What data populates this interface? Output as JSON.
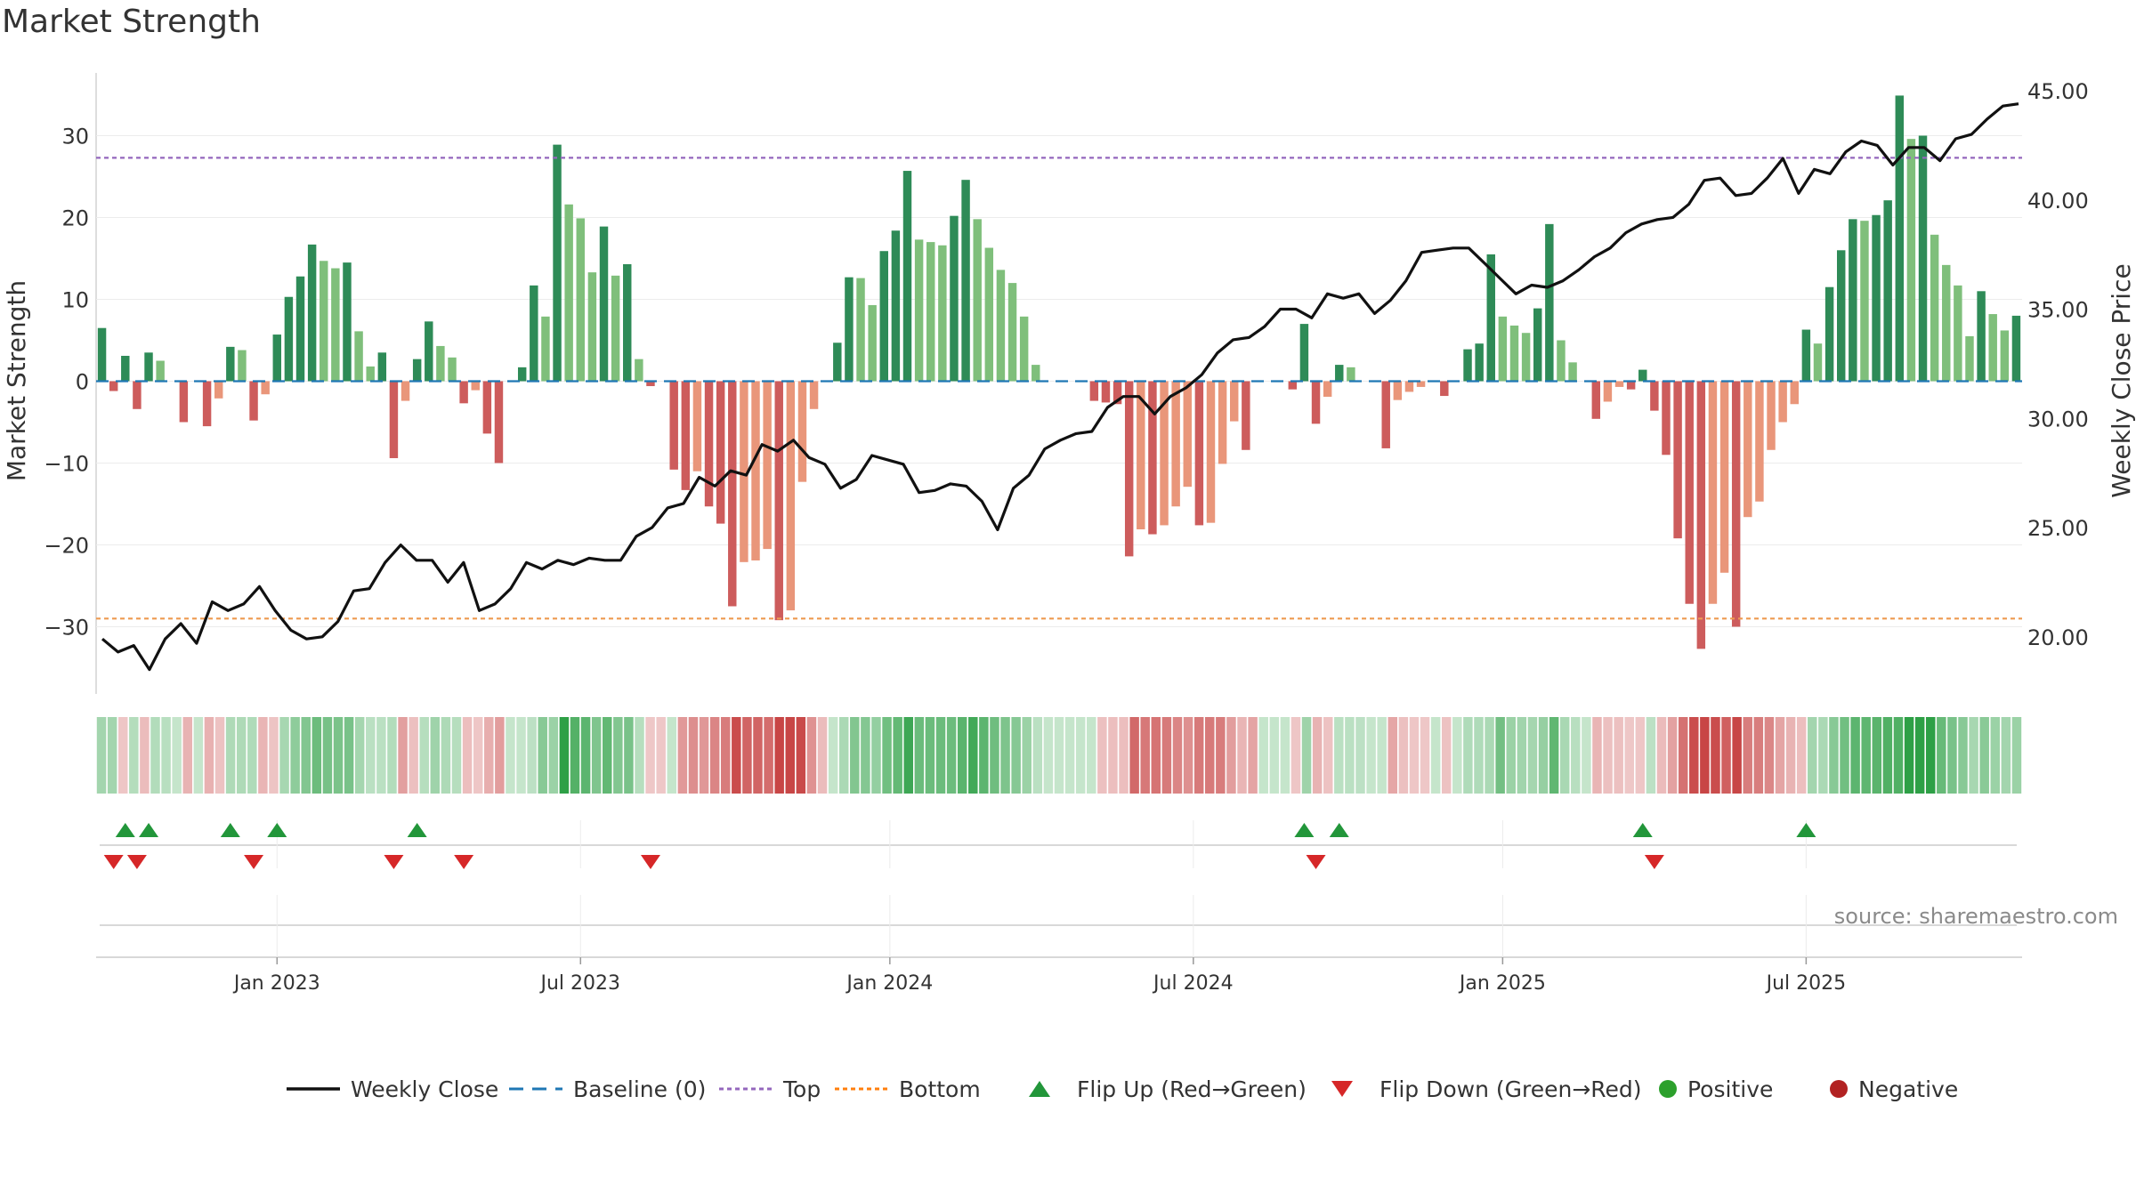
{
  "chart_data": {
    "type": "bar",
    "title": "Market Strength",
    "source": "source: sharemaestro.com",
    "ylabel_left": "Market Strength",
    "ylabel_right": "Weekly Close Price",
    "y_left_ticks": [
      "30",
      "20",
      "10",
      "0",
      "−10",
      "−20",
      "−30"
    ],
    "y_left_range": [
      -38,
      38
    ],
    "y_right_ticks": [
      "45.00",
      "40.00",
      "35.00",
      "30.00",
      "25.00",
      "20.00"
    ],
    "y_right_range": [
      17.5,
      46.5
    ],
    "x_tick_labels": [
      "Jan 2023",
      "Jul 2023",
      "Jan 2024",
      "Jul 2024",
      "Jan 2025",
      "Jul 2025"
    ],
    "x_tick_weeks": [
      15,
      41,
      67.5,
      93.5,
      120,
      146
    ],
    "top_line": 27.3,
    "bottom_line": -29.0,
    "baseline": 0,
    "strength": [
      6.5,
      -1.2,
      3.1,
      -3.4,
      3.5,
      2.5,
      0,
      -5,
      0,
      -5.5,
      -2.1,
      4.2,
      3.8,
      -4.8,
      -1.6,
      5.7,
      10.3,
      12.8,
      16.7,
      14.7,
      13.8,
      14.5,
      6.1,
      1.8,
      3.5,
      -9.4,
      -2.4,
      2.7,
      7.3,
      4.3,
      2.9,
      -2.7,
      -1.1,
      -6.4,
      -10,
      0,
      1.7,
      11.7,
      7.9,
      28.9,
      21.6,
      19.9,
      13.3,
      18.9,
      12.9,
      14.3,
      2.7,
      -0.6,
      0,
      -10.8,
      -13.3,
      -11,
      -15.3,
      -17.4,
      -27.5,
      -22.1,
      -21.9,
      -20.5,
      -29.2,
      -28,
      -12.3,
      -3.4,
      0,
      4.7,
      12.7,
      12.6,
      9.3,
      15.9,
      18.4,
      25.7,
      17.3,
      17,
      16.6,
      20.2,
      24.6,
      19.8,
      16.3,
      13.6,
      12,
      7.9,
      2,
      0,
      0,
      0,
      0,
      -2.4,
      -2.6,
      -2.8,
      -21.4,
      -18.1,
      -18.7,
      -17.6,
      -15.3,
      -12.9,
      -17.6,
      -17.3,
      -10.1,
      -4.9,
      -8.4,
      0,
      0,
      0,
      -1,
      7,
      -5.2,
      -1.9,
      2,
      1.7,
      0,
      0,
      -8.2,
      -2.3,
      -1.3,
      -0.7,
      0,
      -1.8,
      0,
      3.9,
      4.6,
      15.5,
      7.9,
      6.8,
      5.9,
      8.9,
      19.2,
      5,
      2.3,
      0,
      -4.6,
      -2.5,
      -0.7,
      -1,
      1.4,
      -3.6,
      -9,
      -19.2,
      -27.2,
      -32.7,
      -27.2,
      -23.4,
      -30,
      -16.6,
      -14.7,
      -8.4,
      -5,
      -2.8,
      6.3,
      4.6,
      11.5,
      16,
      19.8,
      19.6,
      20.3,
      22.1,
      34.9,
      29.6,
      30,
      17.9,
      14.2,
      11.7,
      5.5,
      11,
      8.2,
      6.2,
      8
    ],
    "weekly_close": [
      19.9,
      19.3,
      19.6,
      18.5,
      19.9,
      20.6,
      19.7,
      21.6,
      21.2,
      21.5,
      22.3,
      21.2,
      20.3,
      19.9,
      20.0,
      20.7,
      22.1,
      22.2,
      23.4,
      24.2,
      23.5,
      23.5,
      22.5,
      23.4,
      21.2,
      21.5,
      22.2,
      23.4,
      23.1,
      23.5,
      23.3,
      23.6,
      23.5,
      23.5,
      24.6,
      25.0,
      25.9,
      26.1,
      27.3,
      26.9,
      27.6,
      27.4,
      28.8,
      28.5,
      29.0,
      28.2,
      27.9,
      26.8,
      27.2,
      28.3,
      28.1,
      27.9,
      26.6,
      26.7,
      27.0,
      26.9,
      26.2,
      24.9,
      26.8,
      27.4,
      28.6,
      29.0,
      29.3,
      29.4,
      30.5,
      31.0,
      31.0,
      30.2,
      31.0,
      31.4,
      32.0,
      33.0,
      33.6,
      33.7,
      34.2,
      35.0,
      35.0,
      34.6,
      35.7,
      35.5,
      35.7,
      34.8,
      35.4,
      36.3,
      37.6,
      37.7,
      37.8,
      37.8,
      37.1,
      36.4,
      35.7,
      36.1,
      36.0,
      36.3,
      36.8,
      37.4,
      37.8,
      38.5,
      38.9,
      39.1,
      39.2,
      39.8,
      40.9,
      41.0,
      40.2,
      40.3,
      41.0,
      41.9,
      40.3,
      41.4,
      41.2,
      42.2,
      42.7,
      42.5,
      41.6,
      42.4,
      42.4,
      41.8,
      42.8,
      43.0,
      43.7,
      44.3,
      44.4
    ],
    "strip_cells": 179,
    "markers_note": "Flip Up / Flip Down",
    "legend": [
      {
        "label": "Weekly Close",
        "kind": "line",
        "color": "#111111"
      },
      {
        "label": "Baseline (0)",
        "kind": "dash",
        "color": "#1f77b4"
      },
      {
        "label": "Top",
        "kind": "dot",
        "color": "#9467bd"
      },
      {
        "label": "Bottom",
        "kind": "dot",
        "color": "#ff7f0e"
      },
      {
        "label": "Flip Up (Red→Green)",
        "kind": "tri-up",
        "color": "#22963a"
      },
      {
        "label": "Flip Down (Green→Red)",
        "kind": "tri-down",
        "color": "#d62728"
      },
      {
        "label": "Positive",
        "kind": "circle",
        "color": "#2ca02c"
      },
      {
        "label": "Negative",
        "kind": "circle",
        "color": "#b22222"
      }
    ]
  }
}
